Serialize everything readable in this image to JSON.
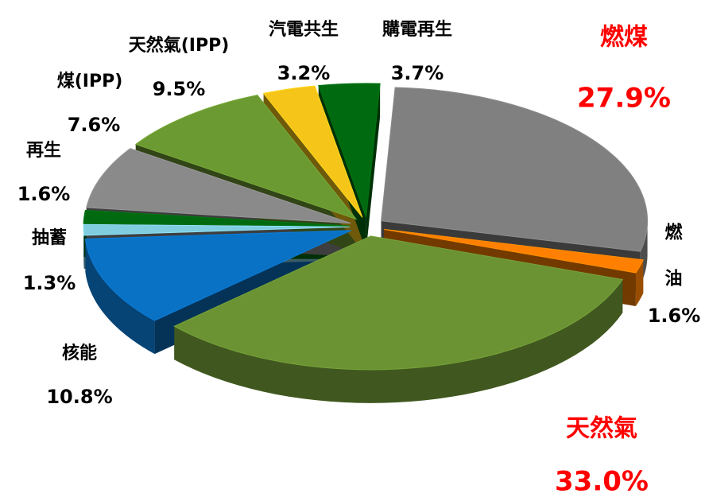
{
  "chart_data": {
    "type": "pie3d",
    "categories": [
      "燃煤",
      "燃油",
      "天然氣",
      "核能",
      "抽蓄",
      "再生",
      "煤(IPP)",
      "天然氣(IPP)",
      "汽電共生",
      "購電再生"
    ],
    "values": [
      27.9,
      1.6,
      33.0,
      10.8,
      1.3,
      1.6,
      7.6,
      9.5,
      3.2,
      3.7
    ],
    "value_labels": [
      "27.9%",
      "1.6%",
      "33.0%",
      "10.8%",
      "1.3%",
      "1.6%",
      "7.6%",
      "9.5%",
      "3.2%",
      "3.7%"
    ],
    "colors": [
      "#808080",
      "#ff8000",
      "#6b9333",
      "#0a72c4",
      "#80cde0",
      "#006a10",
      "#8a8a8a",
      "#6c9a32",
      "#f6c519",
      "#006a10"
    ],
    "label_colors": [
      "#ff0000",
      "#000000",
      "#ff0000",
      "#000000",
      "#000000",
      "#000000",
      "#000000",
      "#000000",
      "#000000",
      "#000000"
    ]
  }
}
